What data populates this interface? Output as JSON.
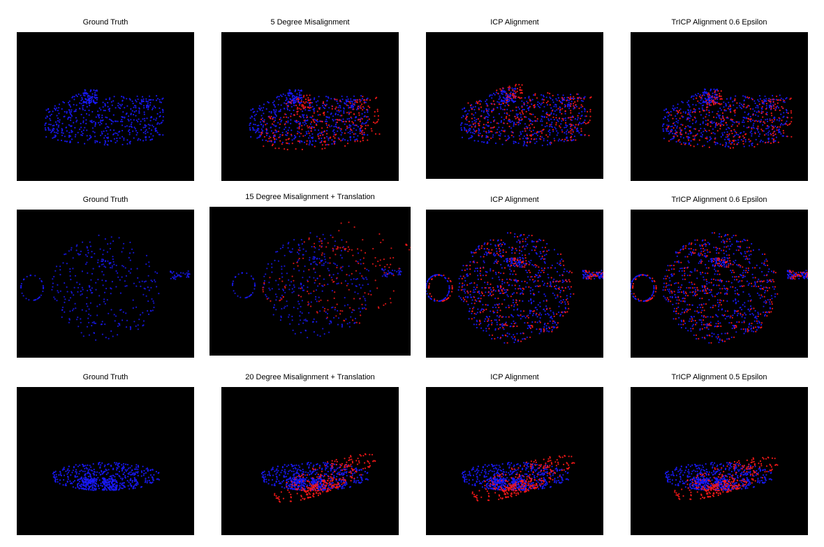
{
  "colors": {
    "ground_truth_points": "#1a1aff",
    "misaligned_points": "#ff1a1a",
    "background": "#000000"
  },
  "rows": [
    {
      "object": "shoe-icon",
      "titles": [
        "Ground Truth",
        "5 Degree Misalignment",
        "ICP Alignment",
        "TrICP Alignment 0.6 Epsilon"
      ]
    },
    {
      "object": "teapot-icon",
      "titles": [
        "Ground Truth",
        "15 Degree Misalignment + Translation",
        "ICP Alignment",
        "TrICP Alignment 0.6 Epsilon"
      ]
    },
    {
      "object": "slipper-icon",
      "titles": [
        "Ground Truth",
        "20 Degree Misalignment + Translation",
        "ICP Alignment",
        "TrICP Alignment 0.5 Epsilon"
      ]
    }
  ]
}
